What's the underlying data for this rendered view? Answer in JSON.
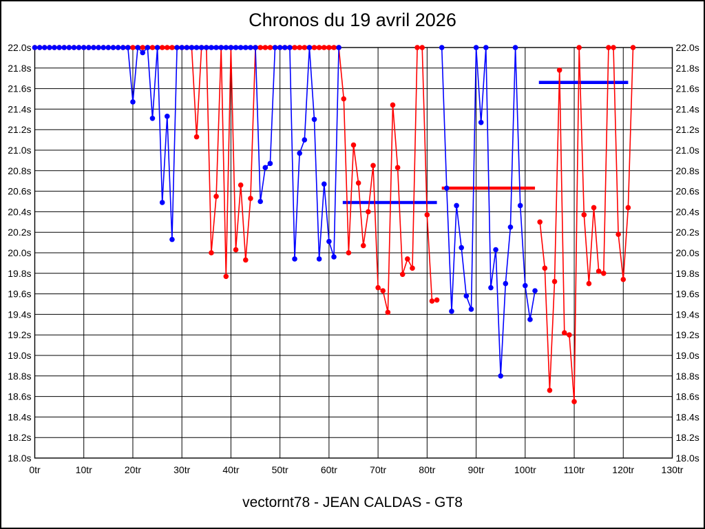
{
  "chart_data": {
    "type": "line",
    "title": "Chronos du 19 avril 2026",
    "footer": "vectornt78 - JEAN CALDAS - GT8",
    "grid": true,
    "x_axis": {
      "unit": "tr",
      "min": 0,
      "max": 130,
      "tick_step": 10,
      "tick_labels": [
        "0tr",
        "10tr",
        "20tr",
        "30tr",
        "40tr",
        "50tr",
        "60tr",
        "70tr",
        "80tr",
        "90tr",
        "100tr",
        "110tr",
        "120tr",
        "130tr"
      ]
    },
    "y_axis": {
      "unit": "s",
      "min": 18.0,
      "max": 22.0,
      "tick_step": 0.2,
      "label_sides": [
        "left",
        "right"
      ],
      "tick_labels": [
        "22.0s",
        "21.8s",
        "21.6s",
        "21.4s",
        "21.2s",
        "21.0s",
        "20.8s",
        "20.6s",
        "20.4s",
        "20.2s",
        "20.0s",
        "19.8s",
        "19.6s",
        "19.4s",
        "19.2s",
        "19.0s",
        "18.8s",
        "18.6s",
        "18.4s",
        "18.2s",
        "18.0s"
      ]
    },
    "series": [
      {
        "name": "red-driver-laps",
        "color": "#ff0000",
        "start_lap": 0,
        "values": [
          22,
          22,
          22,
          22,
          22,
          22,
          22,
          22,
          22,
          22,
          22,
          22,
          22,
          22,
          22,
          22,
          22,
          22,
          22,
          22,
          22,
          22,
          22,
          22,
          22,
          22,
          22,
          22,
          22,
          22,
          22,
          22,
          22,
          21.13,
          22,
          22,
          20.0,
          20.55,
          22,
          19.77,
          22,
          20.03,
          20.66,
          19.93,
          20.53,
          22,
          22,
          22,
          22,
          22,
          22,
          22,
          22,
          22,
          22,
          22,
          22,
          22,
          22,
          22,
          22,
          22,
          22,
          21.5,
          20.0,
          21.05,
          20.68,
          20.07,
          20.4,
          20.85,
          19.66,
          19.63,
          19.42,
          21.44,
          20.83,
          19.79,
          19.94,
          19.85,
          22,
          22,
          20.37,
          19.53,
          19.54,
          null,
          null,
          null,
          null,
          null,
          null,
          null,
          null,
          null,
          null,
          null,
          null,
          null,
          null,
          null,
          null,
          null,
          null,
          null,
          null,
          20.3,
          19.85,
          18.66,
          19.72,
          21.78,
          19.22,
          19.2,
          18.55,
          22,
          20.37,
          19.7,
          20.44,
          19.82,
          19.8,
          22,
          22,
          20.18,
          19.74,
          20.44,
          22
        ]
      },
      {
        "name": "blue-driver-laps",
        "color": "#0000ff",
        "start_lap": 0,
        "values": [
          22,
          22,
          22,
          22,
          22,
          22,
          22,
          22,
          22,
          22,
          22,
          22,
          22,
          22,
          22,
          22,
          22,
          22,
          22,
          22,
          21.47,
          22,
          21.95,
          22,
          21.31,
          22,
          20.49,
          21.33,
          20.13,
          22,
          22,
          22,
          22,
          22,
          22,
          22,
          22,
          22,
          22,
          22,
          22,
          22,
          22,
          22,
          22,
          22,
          20.5,
          20.83,
          20.87,
          22,
          22,
          22,
          22,
          19.94,
          20.97,
          21.1,
          22,
          21.3,
          19.94,
          20.67,
          20.11,
          19.96,
          22,
          null,
          null,
          null,
          null,
          null,
          null,
          null,
          null,
          null,
          null,
          null,
          null,
          null,
          null,
          null,
          null,
          null,
          null,
          null,
          null,
          22,
          20.63,
          19.43,
          20.46,
          20.05,
          19.58,
          19.45,
          22,
          21.27,
          22,
          19.66,
          20.03,
          18.8,
          19.7,
          20.25,
          22,
          20.46,
          19.68,
          19.35,
          19.63
        ]
      }
    ],
    "average_segments": [
      {
        "series": "red",
        "color": "#ff0000",
        "value": 22.0,
        "from_lap": 18,
        "to_lap": 62
      },
      {
        "series": "blue",
        "color": "#0000ff",
        "value": 22.0,
        "from_lap": 31.4,
        "to_lap": 44.3
      },
      {
        "series": "blue",
        "color": "#0000ff",
        "value": 20.49,
        "from_lap": 62.8,
        "to_lap": 82
      },
      {
        "series": "red",
        "color": "#ff0000",
        "value": 20.63,
        "from_lap": 83,
        "to_lap": 102
      },
      {
        "series": "blue",
        "color": "#0000ff",
        "value": 21.66,
        "from_lap": 102.8,
        "to_lap": 121
      }
    ],
    "colors": {
      "grid": "#000000",
      "background": "#ffffff",
      "text": "#000000"
    }
  }
}
